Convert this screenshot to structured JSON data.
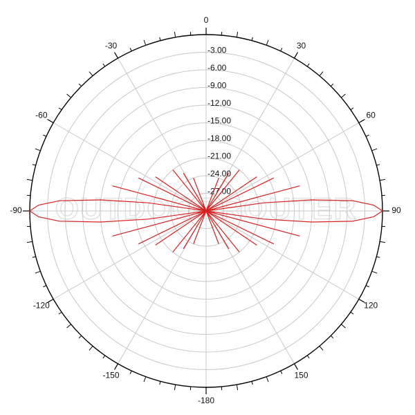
{
  "chart_data": {
    "type": "polar",
    "watermark": "OUTDOORROUTER",
    "theta": [
      -180,
      -170,
      -159,
      -154,
      -149,
      -145,
      -141,
      -133,
      -124,
      -120,
      -116,
      -111,
      -105,
      -100,
      -98,
      -96,
      -94,
      -92,
      -90,
      -88,
      -86,
      -84,
      -82,
      -80,
      -75,
      -69,
      -64,
      -60,
      -56,
      -47,
      -39,
      -35,
      -31,
      -26,
      -21,
      -10,
      0,
      10,
      21,
      26,
      31,
      35,
      39,
      47,
      56,
      60,
      64,
      69,
      75,
      80,
      82,
      84,
      86,
      88,
      90,
      92,
      94,
      96,
      98,
      100,
      105,
      111,
      116,
      120,
      124,
      133,
      141,
      145,
      149,
      154,
      159,
      170,
      180
    ],
    "r": [
      -30,
      -30,
      -24,
      -30,
      -22.5,
      -30,
      -21,
      -30,
      -19.6,
      -30,
      -17.2,
      -30,
      -13.5,
      -30,
      -20,
      -12,
      -5,
      -1.5,
      0,
      -1.5,
      -5,
      -12,
      -20,
      -30,
      -13.5,
      -30,
      -17.2,
      -30,
      -19.6,
      -30,
      -21,
      -30,
      -22.5,
      -30,
      -24,
      -30,
      -30,
      -30,
      -24,
      -30,
      -22.5,
      -30,
      -21,
      -30,
      -19.6,
      -30,
      -17.2,
      -30,
      -13.5,
      -30,
      -20,
      -12,
      -5,
      -1.5,
      0,
      -1.5,
      -5,
      -12,
      -20,
      -30,
      -13.5,
      -30,
      -17.2,
      -30,
      -19.6,
      -30,
      -21,
      -30,
      -22.5,
      -30,
      -24,
      -30,
      -30
    ],
    "color": "#d42020",
    "rlim": [
      -30,
      0
    ],
    "rticks": [
      {
        "value": -3,
        "label": "-3.00"
      },
      {
        "value": -6,
        "label": "-6.00"
      },
      {
        "value": -9,
        "label": "-9.00"
      },
      {
        "value": -12,
        "label": "-12.00"
      },
      {
        "value": -15,
        "label": "-15.00"
      },
      {
        "value": -18,
        "label": "-18.00"
      },
      {
        "value": -21,
        "label": "-21.00"
      },
      {
        "value": -24,
        "label": "-24.00"
      },
      {
        "value": -27,
        "label": "-27.00"
      }
    ],
    "thetaticks": [
      0,
      30,
      60,
      90,
      120,
      150,
      -180,
      -150,
      -120,
      -90,
      -60,
      -30
    ],
    "grid": true
  }
}
